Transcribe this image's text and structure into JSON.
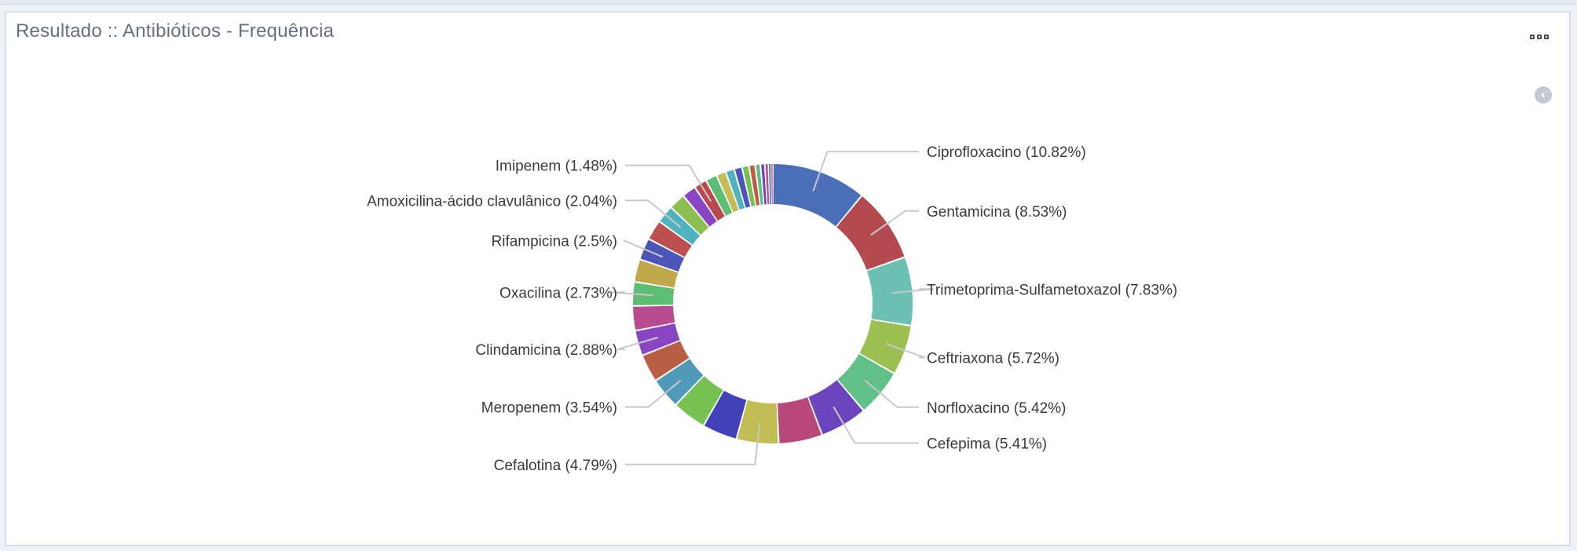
{
  "panel": {
    "title": "Resultado :: Antibióticos - Frequência",
    "menu_icon": "ellipsis-icon",
    "collapse_icon": "chevron-left-circle-icon"
  },
  "chart_data": {
    "type": "pie",
    "donut": true,
    "labels_shown": "outside-with-leader-lines",
    "slices": [
      {
        "label": "Ciprofloxacino (10.82%)",
        "name": "Ciprofloxacino",
        "value": 10.82,
        "color": "#4a6fb8"
      },
      {
        "label": "Gentamicina (8.53%)",
        "name": "Gentamicina",
        "value": 8.53,
        "color": "#b24a4f"
      },
      {
        "label": "Trimetoprima-Sulfametoxazol (7.83%)",
        "name": "Trimetoprima-Sulfametoxazol",
        "value": 7.83,
        "color": "#6cc0b3"
      },
      {
        "label": "Ceftriaxona (5.72%)",
        "name": "Ceftriaxona",
        "value": 5.72,
        "color": "#9cbf52"
      },
      {
        "label": "Norfloxacino (5.42%)",
        "name": "Norfloxacino",
        "value": 5.42,
        "color": "#5fc088"
      },
      {
        "label": "Cefepima (5.41%)",
        "name": "Cefepima",
        "value": 5.41,
        "color": "#6c44bd"
      },
      {
        "label": "",
        "name": "",
        "value": 5.0,
        "color": "#b9487a"
      },
      {
        "label": "Cefalotina (4.79%)",
        "name": "Cefalotina",
        "value": 4.79,
        "color": "#c2bd54"
      },
      {
        "label": "",
        "name": "",
        "value": 4.0,
        "color": "#4142b8"
      },
      {
        "label": "",
        "name": "",
        "value": 3.9,
        "color": "#77c052"
      },
      {
        "label": "Meropenem (3.54%)",
        "name": "Meropenem",
        "value": 3.54,
        "color": "#4f9bb7"
      },
      {
        "label": "",
        "name": "",
        "value": 3.2,
        "color": "#b85e45"
      },
      {
        "label": "Clindamicina (2.88%)",
        "name": "Clindamicina",
        "value": 2.88,
        "color": "#8a45c2"
      },
      {
        "label": "",
        "name": "",
        "value": 2.8,
        "color": "#b84a8f"
      },
      {
        "label": "Oxacilina (2.73%)",
        "name": "Oxacilina",
        "value": 2.73,
        "color": "#5cbe73"
      },
      {
        "label": "",
        "name": "",
        "value": 2.6,
        "color": "#c0a84c"
      },
      {
        "label": "Rifampicina (2.5%)",
        "name": "Rifampicina",
        "value": 2.5,
        "color": "#4a55b7"
      },
      {
        "label": "",
        "name": "",
        "value": 2.3,
        "color": "#bd4f4f"
      },
      {
        "label": "Amoxicilina-ácido clavulânico (2.04%)",
        "name": "Amoxicilina-ácido clavulânico",
        "value": 2.04,
        "color": "#4fb3bd"
      },
      {
        "label": "",
        "name": "",
        "value": 1.9,
        "color": "#8cbf52"
      },
      {
        "label": "",
        "name": "",
        "value": 1.6,
        "color": "#8a45c2"
      },
      {
        "label": "Imipenem (1.48%)",
        "name": "Imipenem",
        "value": 1.48,
        "color": "#b9484f"
      },
      {
        "label": "",
        "name": "",
        "value": 1.3,
        "color": "#5cbe73"
      },
      {
        "label": "",
        "name": "",
        "value": 1.1,
        "color": "#c2bd54"
      },
      {
        "label": "",
        "name": "",
        "value": 1.0,
        "color": "#4fb3bd"
      },
      {
        "label": "",
        "name": "",
        "value": 0.9,
        "color": "#4a55b7"
      },
      {
        "label": "",
        "name": "",
        "value": 0.8,
        "color": "#77c052"
      },
      {
        "label": "",
        "name": "",
        "value": 0.7,
        "color": "#b85e45"
      },
      {
        "label": "",
        "name": "",
        "value": 0.6,
        "color": "#5fc088"
      },
      {
        "label": "",
        "name": "",
        "value": 0.5,
        "color": "#6c44bd"
      },
      {
        "label": "",
        "name": "",
        "value": 0.4,
        "color": "#b84a8f"
      },
      {
        "label": "",
        "name": "",
        "value": 0.3,
        "color": "#4a6fb8"
      },
      {
        "label": "",
        "name": "",
        "value": 0.2,
        "color": "#b9487a"
      }
    ]
  }
}
